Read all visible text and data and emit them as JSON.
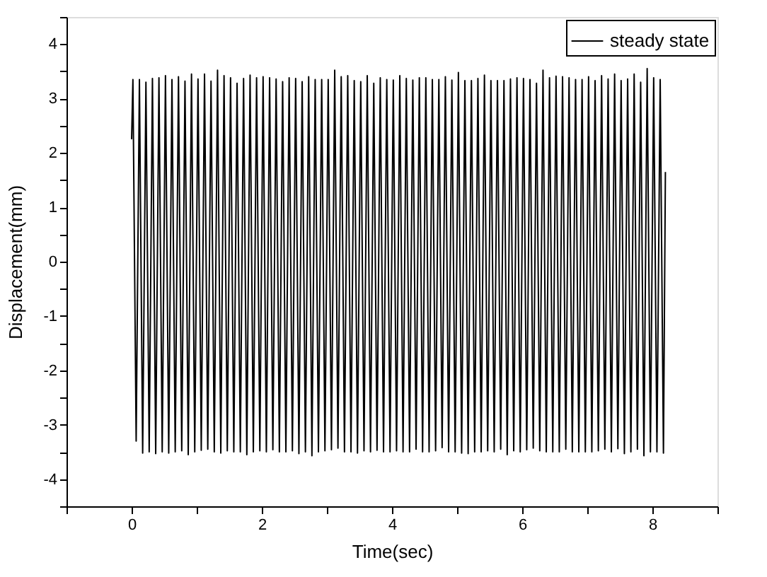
{
  "chart_data": {
    "type": "line",
    "xlabel": "Time(sec)",
    "ylabel": "Displacement(mm)",
    "xlim": [
      -1,
      9
    ],
    "ylim": [
      -4.5,
      4.5
    ],
    "xticks": [
      {
        "value": -1,
        "label": null
      },
      0,
      {
        "value": 1,
        "label": null
      },
      2,
      {
        "value": 3,
        "label": null
      },
      4,
      {
        "value": 5,
        "label": null
      },
      6,
      {
        "value": 7,
        "label": null
      },
      8,
      {
        "value": 9,
        "label": null
      }
    ],
    "yticks": [
      {
        "value": -4.5,
        "label": null
      },
      -4,
      {
        "value": -3.5,
        "label": null
      },
      -3,
      {
        "value": -2.5,
        "label": null
      },
      -2,
      {
        "value": -1.5,
        "label": null
      },
      -1,
      {
        "value": -0.5,
        "label": null
      },
      0,
      {
        "value": 0.5,
        "label": null
      },
      1,
      {
        "value": 1.5,
        "label": null
      },
      2,
      {
        "value": 2.5,
        "label": null
      },
      3,
      {
        "value": 3.5,
        "label": null
      },
      4,
      {
        "value": 4.5,
        "label": null
      }
    ],
    "grid": false,
    "legend": "top right",
    "marker": "none",
    "line_style": "solid",
    "x": [
      0,
      0.02,
      0.07,
      0.12,
      0.17,
      0.22,
      0.27,
      0.32,
      0.37,
      0.42,
      0.47,
      0.52,
      0.57,
      0.62,
      0.67,
      0.72,
      0.77,
      0.82,
      0.87,
      0.92,
      0.97,
      1.02,
      1.07,
      1.12,
      1.17,
      1.22,
      1.27,
      1.32,
      1.37,
      1.42,
      1.47,
      1.52,
      1.57,
      1.62,
      1.67,
      1.72,
      1.77,
      1.82,
      1.87,
      1.92,
      1.97,
      2.02,
      2.07,
      2.12,
      2.17,
      2.22,
      2.27,
      2.32,
      2.37,
      2.42,
      2.47,
      2.52,
      2.57,
      2.62,
      2.67,
      2.72,
      2.77,
      2.82,
      2.87,
      2.92,
      2.97,
      3.02,
      3.07,
      3.12,
      3.17,
      3.22,
      3.27,
      3.32,
      3.37,
      3.42,
      3.47,
      3.52,
      3.57,
      3.62,
      3.67,
      3.72,
      3.77,
      3.82,
      3.87,
      3.92,
      3.97,
      4.02,
      4.07,
      4.12,
      4.17,
      4.22,
      4.27,
      4.32,
      4.37,
      4.42,
      4.47,
      4.52,
      4.57,
      4.62,
      4.67,
      4.72,
      4.77,
      4.82,
      4.87,
      4.92,
      4.97,
      5.02,
      5.07,
      5.12,
      5.17,
      5.22,
      5.27,
      5.32,
      5.37,
      5.42,
      5.47,
      5.52,
      5.57,
      5.62,
      5.67,
      5.72,
      5.77,
      5.82,
      5.87,
      5.92,
      5.97,
      6.02,
      6.07,
      6.12,
      6.17,
      6.22,
      6.27,
      6.32,
      6.37,
      6.42,
      6.47,
      6.52,
      6.57,
      6.62,
      6.67,
      6.72,
      6.77,
      6.82,
      6.87,
      6.92,
      6.97,
      7.02,
      7.07,
      7.12,
      7.17,
      7.22,
      7.27,
      7.32,
      7.37,
      7.42,
      7.47,
      7.52,
      7.57,
      7.62,
      7.67,
      7.72,
      7.77,
      7.82,
      7.87,
      7.92,
      7.97,
      8.02,
      8.07,
      8.12,
      8.17,
      8.2
    ],
    "series": [
      {
        "name": "steady state",
        "color": "#000000",
        "values": [
          2.25,
          3.35,
          -3.3,
          3.35,
          -3.52,
          3.3,
          -3.5,
          3.37,
          -3.53,
          3.38,
          -3.5,
          3.42,
          -3.52,
          3.35,
          -3.5,
          3.4,
          -3.48,
          3.32,
          -3.55,
          3.45,
          -3.5,
          3.36,
          -3.47,
          3.45,
          -3.45,
          3.32,
          -3.5,
          3.52,
          -3.52,
          3.42,
          -3.48,
          3.38,
          -3.5,
          3.28,
          -3.5,
          3.37,
          -3.55,
          3.43,
          -3.5,
          3.38,
          -3.48,
          3.4,
          -3.5,
          3.38,
          -3.46,
          3.36,
          -3.5,
          3.31,
          -3.5,
          3.38,
          -3.48,
          3.37,
          -3.53,
          3.31,
          -3.5,
          3.4,
          -3.57,
          3.35,
          -3.5,
          3.35,
          -3.48,
          3.35,
          -3.46,
          3.52,
          -3.43,
          3.4,
          -3.5,
          3.42,
          -3.5,
          3.33,
          -3.52,
          3.31,
          -3.48,
          3.42,
          -3.5,
          3.28,
          -3.47,
          3.38,
          -3.5,
          3.35,
          -3.5,
          3.34,
          -3.48,
          3.42,
          -3.5,
          3.37,
          -3.5,
          3.34,
          -3.45,
          3.38,
          -3.5,
          3.38,
          -3.5,
          3.35,
          -3.48,
          3.35,
          -3.42,
          3.4,
          -3.5,
          3.34,
          -3.5,
          3.48,
          -3.52,
          3.33,
          -3.53,
          3.33,
          -3.5,
          3.37,
          -3.5,
          3.43,
          -3.48,
          3.33,
          -3.5,
          3.33,
          -3.45,
          3.33,
          -3.55,
          3.36,
          -3.48,
          3.38,
          -3.5,
          3.37,
          -3.46,
          3.35,
          -3.43,
          3.28,
          -3.48,
          3.52,
          -3.5,
          3.38,
          -3.5,
          3.41,
          -3.5,
          3.4,
          -3.45,
          3.38,
          -3.5,
          3.35,
          -3.5,
          3.35,
          -3.5,
          3.4,
          -3.5,
          3.33,
          -3.48,
          3.42,
          -3.45,
          3.36,
          -3.5,
          3.45,
          -3.44,
          3.33,
          -3.53,
          3.36,
          -3.5,
          3.45,
          -3.45,
          3.3,
          -3.57,
          3.55,
          -3.5,
          3.38,
          -3.5,
          3.35,
          -3.52,
          1.65
        ]
      }
    ]
  }
}
